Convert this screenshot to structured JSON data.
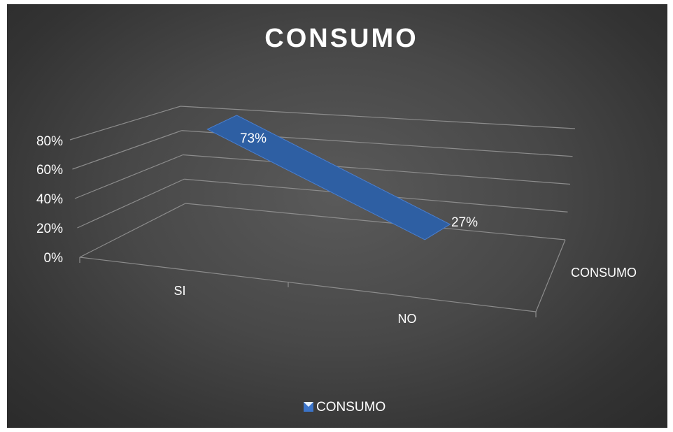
{
  "chart_data": {
    "type": "area",
    "title": "CONSUMO",
    "categories": [
      "SI",
      "NO"
    ],
    "series": [
      {
        "name": "CONSUMO",
        "values": [
          0.73,
          0.27
        ]
      }
    ],
    "data_labels": [
      "73%",
      "27%"
    ],
    "ylim": [
      0,
      0.8
    ],
    "y_ticks": [
      "0%",
      "20%",
      "40%",
      "60%",
      "80%"
    ],
    "depth_axis_label": "CONSUMO",
    "legend": {
      "position": "bottom",
      "entries": [
        "CONSUMO"
      ]
    },
    "grid": true,
    "colors": {
      "series": "#2e5fa3",
      "series_edge": "#4a7fd0",
      "grid": "#8c8c8c",
      "text": "#ffffff",
      "background": "#3d3d3d"
    }
  }
}
